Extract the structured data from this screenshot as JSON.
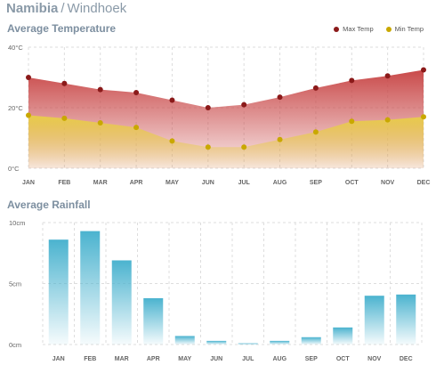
{
  "header": {
    "country": "Namibia",
    "separator": "/",
    "city": "Windhoek"
  },
  "temperature_section": {
    "title": "Average Temperature",
    "legend": [
      {
        "label": "Max Temp",
        "color": "#8b1a1a"
      },
      {
        "label": "Min Temp",
        "color": "#c9a800"
      }
    ]
  },
  "rainfall_section": {
    "title": "Average Rainfall"
  },
  "colors": {
    "max_fill": "#c94a4a",
    "min_fill": "#e8cc4a",
    "max_point": "#8b1a1a",
    "min_point": "#c9a800",
    "bar_top": "#4bb3cf",
    "grid": "#dddddd",
    "axis_text": "#666666"
  },
  "chart_data": [
    {
      "type": "area",
      "title": "Average Temperature",
      "categories": [
        "JAN",
        "FEB",
        "MAR",
        "APR",
        "MAY",
        "JUN",
        "JUL",
        "AUG",
        "SEP",
        "OCT",
        "NOV",
        "DEC"
      ],
      "series": [
        {
          "name": "Max Temp",
          "values": [
            30,
            28,
            26,
            25,
            22.5,
            20,
            21,
            23.5,
            26.5,
            29,
            30.5,
            32.5
          ]
        },
        {
          "name": "Min Temp",
          "values": [
            17.5,
            16.5,
            15,
            13.5,
            9,
            7,
            7,
            9.5,
            12,
            15.5,
            16,
            17
          ]
        }
      ],
      "ylim": [
        0,
        40
      ],
      "yticks": [
        {
          "value": 0,
          "label": "0°C"
        },
        {
          "value": 20,
          "label": "20°C"
        },
        {
          "value": 40,
          "label": "40°C"
        }
      ],
      "grid": true,
      "legend": "top-right"
    },
    {
      "type": "bar",
      "title": "Average Rainfall",
      "categories": [
        "JAN",
        "FEB",
        "MAR",
        "APR",
        "MAY",
        "JUN",
        "JUL",
        "AUG",
        "SEP",
        "OCT",
        "NOV",
        "DEC"
      ],
      "values": [
        8.6,
        9.3,
        6.9,
        3.8,
        0.7,
        0.3,
        0.1,
        0.3,
        0.6,
        1.4,
        4.0,
        4.1
      ],
      "ylim": [
        0,
        10
      ],
      "yticks": [
        {
          "value": 0,
          "label": "0cm"
        },
        {
          "value": 5,
          "label": "5cm"
        },
        {
          "value": 10,
          "label": "10cm"
        }
      ],
      "grid": true
    }
  ]
}
